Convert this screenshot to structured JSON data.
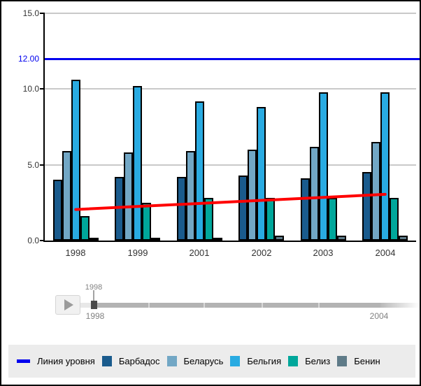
{
  "chart_data": {
    "type": "bar",
    "title": "",
    "categories": [
      "1998",
      "1999",
      "2001",
      "2002",
      "2003",
      "2004"
    ],
    "series": [
      {
        "name": "Барбадос",
        "color": "#1a5b8d",
        "values": [
          4.0,
          4.2,
          4.2,
          4.3,
          4.1,
          4.5
        ]
      },
      {
        "name": "Беларусь",
        "color": "#72a7c5",
        "values": [
          5.9,
          5.8,
          5.9,
          6.0,
          6.2,
          6.5
        ]
      },
      {
        "name": "Бельгия",
        "color": "#29abe2",
        "values": [
          10.6,
          10.2,
          9.2,
          8.8,
          9.8,
          9.8
        ]
      },
      {
        "name": "Белиз",
        "color": "#00a79b",
        "values": [
          1.6,
          2.5,
          2.8,
          2.8,
          2.8,
          2.8
        ]
      },
      {
        "name": "Бенин",
        "color": "#5f7b88",
        "values": [
          0.2,
          0.2,
          0.2,
          0.3,
          0.3,
          0.3
        ]
      }
    ],
    "level_line": {
      "value": 12,
      "label": "12.00",
      "color": "#0000ee"
    },
    "trend_line": {
      "color": "#ff0000",
      "points": [
        {
          "category": "1998",
          "value": 2.05
        },
        {
          "category": "2004",
          "value": 3.05
        }
      ]
    },
    "y_axis": {
      "ylim": [
        0,
        15
      ],
      "grid": true,
      "ticks": [
        {
          "value": 0,
          "label": "0.0"
        },
        {
          "value": 5,
          "label": "5.0"
        },
        {
          "value": 10,
          "label": "10.0"
        },
        {
          "value": 15,
          "label": "15.0"
        }
      ]
    },
    "legend_position": "bottom"
  },
  "slider": {
    "current_label": "1998",
    "range_start_label": "1998",
    "range_end_label": "2004",
    "play_icon": "play-triangle"
  },
  "legend": {
    "level_line_label": "Линия уровня"
  }
}
